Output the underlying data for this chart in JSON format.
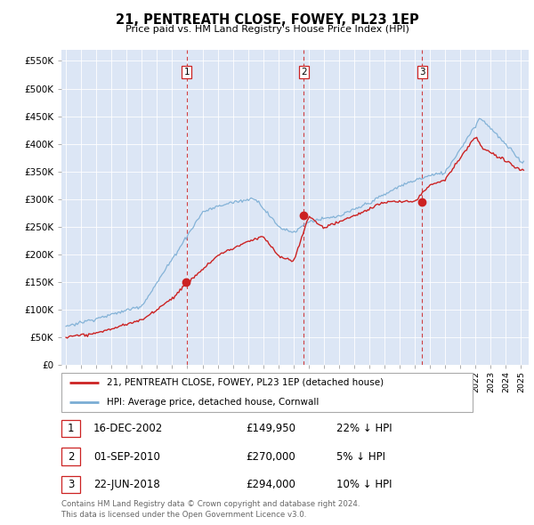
{
  "title": "21, PENTREATH CLOSE, FOWEY, PL23 1EP",
  "subtitle": "Price paid vs. HM Land Registry's House Price Index (HPI)",
  "ylabel_ticks": [
    "£0",
    "£50K",
    "£100K",
    "£150K",
    "£200K",
    "£250K",
    "£300K",
    "£350K",
    "£400K",
    "£450K",
    "£500K",
    "£550K"
  ],
  "ytick_values": [
    0,
    50000,
    100000,
    150000,
    200000,
    250000,
    300000,
    350000,
    400000,
    450000,
    500000,
    550000
  ],
  "ylim": [
    0,
    570000
  ],
  "xlim_start": 1994.7,
  "xlim_end": 2025.5,
  "plot_bg_color": "#dce6f5",
  "fig_bg_color": "#ffffff",
  "hpi_line_color": "#7aadd4",
  "price_line_color": "#cc2222",
  "vline_color": "#cc2222",
  "transaction_dates": [
    2002.96,
    2010.67,
    2018.47
  ],
  "transaction_labels": [
    "1",
    "2",
    "3"
  ],
  "transaction_prices": [
    149950,
    270000,
    294000
  ],
  "legend_entries": [
    "21, PENTREATH CLOSE, FOWEY, PL23 1EP (detached house)",
    "HPI: Average price, detached house, Cornwall"
  ],
  "table_rows": [
    {
      "num": "1",
      "date": "16-DEC-2002",
      "price": "£149,950",
      "hpi": "22% ↓ HPI"
    },
    {
      "num": "2",
      "date": "01-SEP-2010",
      "price": "£270,000",
      "hpi": "5% ↓ HPI"
    },
    {
      "num": "3",
      "date": "22-JUN-2018",
      "price": "£294,000",
      "hpi": "10% ↓ HPI"
    }
  ],
  "footer": "Contains HM Land Registry data © Crown copyright and database right 2024.\nThis data is licensed under the Open Government Licence v3.0.",
  "xtick_years": [
    1995,
    1996,
    1997,
    1998,
    1999,
    2000,
    2001,
    2002,
    2003,
    2004,
    2005,
    2006,
    2007,
    2008,
    2009,
    2010,
    2011,
    2012,
    2013,
    2014,
    2015,
    2016,
    2017,
    2018,
    2019,
    2020,
    2021,
    2022,
    2023,
    2024,
    2025
  ]
}
